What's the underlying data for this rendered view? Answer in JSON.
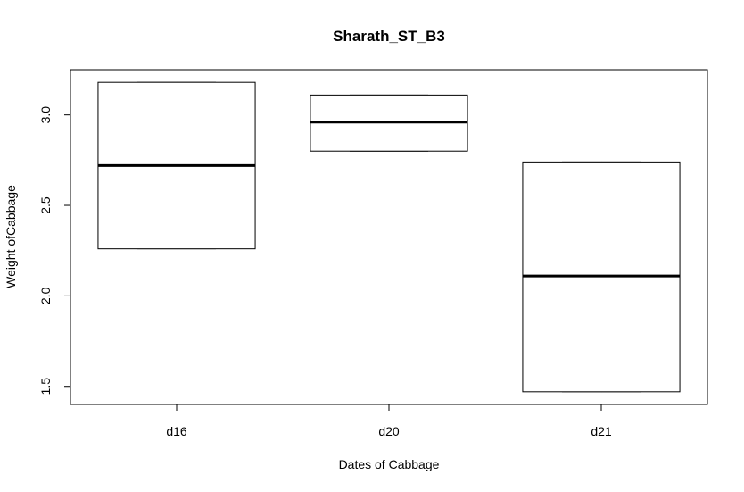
{
  "chart_data": {
    "type": "box",
    "title": "Sharath_ST_B3",
    "xlabel": "Dates of Cabbage",
    "ylabel": "Weight ofCabbage",
    "categories": [
      "d16",
      "d20",
      "d21"
    ],
    "boxes": [
      {
        "category": "d16",
        "min": 2.26,
        "q1": 2.26,
        "median": 2.72,
        "q3": 3.18,
        "max": 3.18
      },
      {
        "category": "d20",
        "min": 2.8,
        "q1": 2.8,
        "median": 2.96,
        "q3": 3.11,
        "max": 3.11
      },
      {
        "category": "d21",
        "min": 1.47,
        "q1": 1.47,
        "median": 2.11,
        "q3": 2.74,
        "max": 2.74
      }
    ],
    "ylim": [
      1.4,
      3.25
    ],
    "yticks": [
      1.5,
      2.0,
      2.5,
      3.0
    ],
    "ytick_labels": [
      "1.5",
      "2.0",
      "2.5",
      "3.0"
    ],
    "grid": false,
    "legend": "none"
  }
}
